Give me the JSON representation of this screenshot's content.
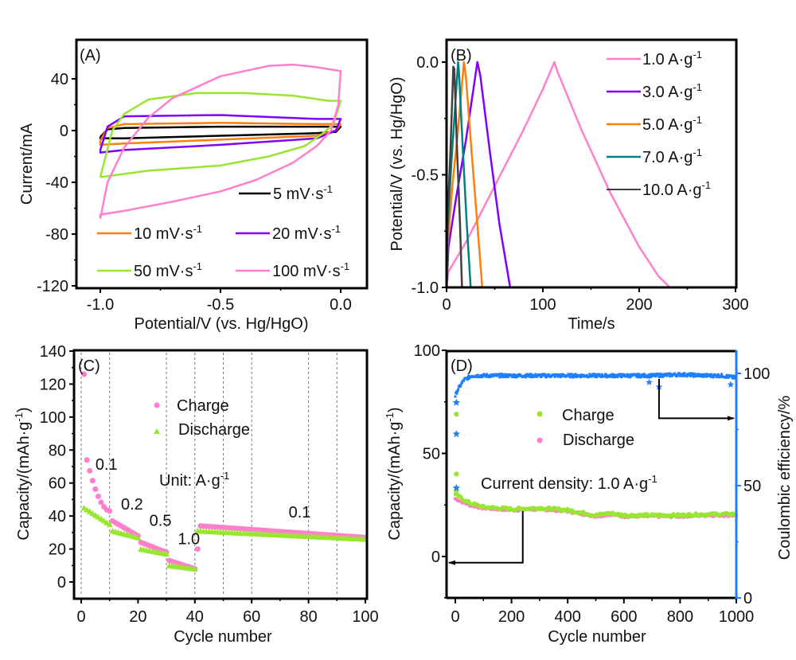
{
  "chart_data": [
    {
      "panel": "A",
      "type": "line",
      "panel_label": "(A)",
      "xlabel": "Potential/V (vs. Hg/HgO)",
      "ylabel": "Current/mA",
      "xlim": [
        -1.1,
        0.07
      ],
      "ylim": [
        -121,
        70
      ],
      "xticks": [
        -1.0,
        -0.5,
        0.0
      ],
      "xtick_labels": [
        "-1.0",
        "-0.5",
        "0.0"
      ],
      "yticks": [
        40,
        0,
        -40,
        -80,
        -120
      ],
      "ytick_labels": [
        "40",
        "0",
        "-40",
        "-80",
        "-120"
      ],
      "legend_layout": "bottom, 3 rows",
      "series": [
        {
          "name": "5 mV·s-1",
          "label_main": "5 mV·s",
          "label_sup": "-1",
          "color": "#000000",
          "upper": [
            [
              -1.0,
              -5
            ],
            [
              -0.97,
              1
            ],
            [
              -0.9,
              2
            ],
            [
              -0.5,
              3
            ],
            [
              -0.1,
              3
            ],
            [
              0.0,
              3
            ]
          ],
          "lower": [
            [
              0.0,
              3
            ],
            [
              -0.02,
              -1
            ],
            [
              -0.1,
              -2
            ],
            [
              -0.5,
              -4
            ],
            [
              -0.9,
              -6
            ],
            [
              -1.0,
              -6
            ],
            [
              -1.0,
              -5
            ]
          ]
        },
        {
          "name": "10 mV·s-1",
          "label_main": "10 mV·s",
          "label_sup": "-1",
          "color": "#ff7f0e",
          "upper": [
            [
              -1.0,
              -8
            ],
            [
              -0.97,
              2
            ],
            [
              -0.9,
              5
            ],
            [
              -0.5,
              6
            ],
            [
              -0.1,
              5
            ],
            [
              0.0,
              5
            ]
          ],
          "lower": [
            [
              0.0,
              5
            ],
            [
              -0.02,
              0
            ],
            [
              -0.1,
              -4
            ],
            [
              -0.5,
              -7
            ],
            [
              -0.9,
              -10
            ],
            [
              -1.0,
              -11
            ],
            [
              -1.0,
              -8
            ]
          ]
        },
        {
          "name": "20 mV·s-1",
          "label_main": "20 mV·s",
          "label_sup": "-1",
          "color": "#7f00ff",
          "upper": [
            [
              -1.0,
              -15
            ],
            [
              -0.97,
              3
            ],
            [
              -0.9,
              11
            ],
            [
              -0.5,
              12
            ],
            [
              -0.1,
              9
            ],
            [
              0.0,
              9
            ]
          ],
          "lower": [
            [
              0.0,
              9
            ],
            [
              -0.02,
              0
            ],
            [
              -0.1,
              -6
            ],
            [
              -0.5,
              -11
            ],
            [
              -0.9,
              -15
            ],
            [
              -1.0,
              -17
            ],
            [
              -1.0,
              -15
            ]
          ]
        },
        {
          "name": "50 mV·s-1",
          "label_main": "50 mV·s",
          "label_sup": "-1",
          "color": "#99e632",
          "upper": [
            [
              -1.0,
              -36
            ],
            [
              -0.95,
              0
            ],
            [
              -0.9,
              13
            ],
            [
              -0.8,
              24
            ],
            [
              -0.6,
              29
            ],
            [
              -0.4,
              29
            ],
            [
              -0.2,
              27
            ],
            [
              -0.05,
              23
            ],
            [
              0.0,
              23
            ]
          ],
          "lower": [
            [
              0.0,
              23
            ],
            [
              -0.03,
              5
            ],
            [
              -0.08,
              -3
            ],
            [
              -0.15,
              -12
            ],
            [
              -0.3,
              -20
            ],
            [
              -0.5,
              -27
            ],
            [
              -0.8,
              -31
            ],
            [
              -1.0,
              -36
            ]
          ]
        },
        {
          "name": "100 mV·s-1",
          "label_main": "100 mV·s",
          "label_sup": "-1",
          "color": "#ff7fcc",
          "upper": [
            [
              -1.0,
              -68
            ],
            [
              -0.97,
              -40
            ],
            [
              -0.9,
              -13
            ],
            [
              -0.8,
              10
            ],
            [
              -0.7,
              25
            ],
            [
              -0.5,
              42
            ],
            [
              -0.3,
              50
            ],
            [
              -0.2,
              51
            ],
            [
              -0.1,
              49
            ],
            [
              0.0,
              46
            ]
          ],
          "lower": [
            [
              0.0,
              46
            ],
            [
              -0.01,
              20
            ],
            [
              -0.04,
              0
            ],
            [
              -0.1,
              -12
            ],
            [
              -0.2,
              -25
            ],
            [
              -0.35,
              -38
            ],
            [
              -0.5,
              -47
            ],
            [
              -0.7,
              -55
            ],
            [
              -0.9,
              -62
            ],
            [
              -1.0,
              -65
            ],
            [
              -1.0,
              -68
            ]
          ]
        }
      ]
    },
    {
      "panel": "B",
      "type": "line",
      "panel_label": "(B)",
      "xlabel": "Time/s",
      "ylabel": "Potential/V (vs. Hg/HgO)",
      "xlim": [
        0,
        300
      ],
      "ylim": [
        -1.0,
        0.08
      ],
      "xticks": [
        0,
        100,
        200,
        300
      ],
      "xtick_labels": [
        "0",
        "100",
        "200",
        "300"
      ],
      "yticks": [
        0.0,
        -0.5,
        -1.0
      ],
      "ytick_labels": [
        "0.0",
        "-0.5",
        "-1.0"
      ],
      "legend_placement": "top-right",
      "series": [
        {
          "name": "1.0 A·g-1",
          "label_main": "1.0 A·g",
          "label_sup": "-1",
          "color": "#ff7fcc",
          "points": [
            [
              0,
              -1.0
            ],
            [
              2,
              -0.93
            ],
            [
              20,
              -0.8
            ],
            [
              50,
              -0.55
            ],
            [
              80,
              -0.3
            ],
            [
              100,
              -0.12
            ],
            [
              112,
              0.0
            ],
            [
              115,
              -0.04
            ],
            [
              140,
              -0.3
            ],
            [
              170,
              -0.58
            ],
            [
              200,
              -0.82
            ],
            [
              220,
              -0.95
            ],
            [
              232,
              -1.0
            ]
          ]
        },
        {
          "name": "3.0 A·g-1",
          "label_main": "3.0 A·g",
          "label_sup": "-1",
          "color": "#7f00ff",
          "points": [
            [
              0,
              -1.0
            ],
            [
              2,
              -0.82
            ],
            [
              10,
              -0.6
            ],
            [
              20,
              -0.35
            ],
            [
              32,
              0.0
            ],
            [
              35,
              -0.06
            ],
            [
              45,
              -0.4
            ],
            [
              55,
              -0.72
            ],
            [
              66,
              -1.0
            ]
          ]
        },
        {
          "name": "5.0 A·g-1",
          "label_main": "5.0 A·g",
          "label_sup": "-1",
          "color": "#ff7f0e",
          "points": [
            [
              0,
              -1.0
            ],
            [
              1,
              -0.82
            ],
            [
              6,
              -0.55
            ],
            [
              12,
              -0.3
            ],
            [
              18,
              0.0
            ],
            [
              20,
              -0.06
            ],
            [
              26,
              -0.4
            ],
            [
              32,
              -0.72
            ],
            [
              37,
              -1.0
            ]
          ]
        },
        {
          "name": "7.0 A·g-1",
          "label_main": "7.0 A·g",
          "label_sup": "-1",
          "color": "#008080",
          "points": [
            [
              0,
              -1.0
            ],
            [
              1,
              -0.75
            ],
            [
              5,
              -0.45
            ],
            [
              12,
              0.0
            ],
            [
              13,
              -0.05
            ],
            [
              17,
              -0.4
            ],
            [
              21,
              -0.72
            ],
            [
              25,
              -1.0
            ]
          ]
        },
        {
          "name": "10.0 A·g-1",
          "label_main": "10.0 A·g",
          "label_sup": "-1",
          "color": "#404040",
          "points": [
            [
              0,
              -1.0
            ],
            [
              1,
              -0.7
            ],
            [
              4,
              -0.4
            ],
            [
              7,
              -0.02
            ],
            [
              8,
              -0.03
            ],
            [
              11,
              -0.4
            ],
            [
              14,
              -0.72
            ],
            [
              16,
              -1.0
            ]
          ]
        }
      ]
    },
    {
      "panel": "C",
      "type": "scatter",
      "panel_label": "(C)",
      "xlabel": "Cycle number",
      "ylabel_main": "Capacity/(mAh·g",
      "ylabel_sup": "-1",
      "ylabel_close": ")",
      "xlim": [
        -2,
        101
      ],
      "ylim": [
        -10,
        140
      ],
      "xticks": [
        0,
        20,
        40,
        60,
        80,
        100
      ],
      "xtick_labels": [
        "0",
        "20",
        "40",
        "60",
        "80",
        "100"
      ],
      "yticks": [
        0,
        20,
        40,
        60,
        80,
        100,
        120,
        140
      ],
      "ytick_labels": [
        "0",
        "20",
        "40",
        "60",
        "80",
        "100",
        "120",
        "140"
      ],
      "vlines": [
        0,
        10,
        30,
        40,
        50,
        60,
        80,
        90
      ],
      "legend_placement": "upper-center",
      "annotations": [
        {
          "text": "0.1",
          "x": 5,
          "y": 68
        },
        {
          "text": "0.2",
          "x": 14,
          "y": 44
        },
        {
          "text": "0.5",
          "x": 24,
          "y": 34
        },
        {
          "text": "1.0",
          "x": 34,
          "y": 23
        },
        {
          "text": "0.1",
          "x": 73,
          "y": 39
        }
      ],
      "unit_note_main": "Unit: A·g",
      "unit_note_sup": "-1",
      "series": [
        {
          "name": "Charge",
          "marker": "circle",
          "color": "#ff7fcc",
          "segments": [
            {
              "from": 1,
              "to": 10,
              "start": 126,
              "mid": 55,
              "end": 43,
              "first_drop": 74
            },
            {
              "from": 11,
              "to": 20,
              "start": 37,
              "end": 28
            },
            {
              "from": 21,
              "to": 30,
              "start": 24,
              "end": 18
            },
            {
              "from": 31,
              "to": 40,
              "start": 13,
              "end": 8
            },
            {
              "from": 41,
              "to": 100,
              "start": 20,
              "second": 34,
              "end": 27
            }
          ]
        },
        {
          "name": "Discharge",
          "marker": "triangle",
          "color": "#99e632",
          "segments": [
            {
              "from": 1,
              "to": 10,
              "start": 45,
              "end": 35
            },
            {
              "from": 11,
              "to": 20,
              "start": 31,
              "end": 27
            },
            {
              "from": 21,
              "to": 30,
              "start": 20,
              "end": 17
            },
            {
              "from": 31,
              "to": 40,
              "start": 10,
              "end": 8
            },
            {
              "from": 41,
              "to": 100,
              "start": 31,
              "end": 26
            }
          ]
        }
      ]
    },
    {
      "panel": "D",
      "type": "scatter",
      "panel_label": "(D)",
      "xlabel": "Cycle number",
      "ylabel_main": "Capacity/(mAh·g",
      "ylabel_sup": "-1",
      "ylabel_close": ")",
      "y2label": "Coulombic efficiency/%",
      "xlim": [
        -30,
        1000
      ],
      "ylim": [
        -20,
        100
      ],
      "y2lim": [
        0,
        110
      ],
      "xticks": [
        0,
        200,
        400,
        600,
        800,
        1000
      ],
      "xtick_labels": [
        "0",
        "200",
        "400",
        "600",
        "800",
        "1000"
      ],
      "yticks": [
        0,
        50,
        100
      ],
      "ytick_labels": [
        "0",
        "50",
        "100"
      ],
      "y2ticks": [
        0,
        50,
        100
      ],
      "y2tick_labels": [
        "0",
        "50",
        "100"
      ],
      "y2_color": "#1e7fff",
      "annotation_main": "Current density:  1.0 A·g",
      "annotation_sup": "-1",
      "legend_placement": "center",
      "series": [
        {
          "name": "Charge",
          "marker": "circle",
          "color": "#99e632",
          "early_points": [
            [
              1,
              69
            ],
            [
              1,
              40
            ],
            [
              1,
              32
            ]
          ],
          "trend": [
            [
              0,
              30
            ],
            [
              50,
              26
            ],
            [
              100,
              24
            ],
            [
              200,
              23
            ],
            [
              300,
              23.5
            ],
            [
              400,
              22.5
            ],
            [
              500,
              20
            ],
            [
              550,
              21
            ],
            [
              600,
              20
            ],
            [
              700,
              20
            ],
            [
              800,
              20
            ],
            [
              900,
              20.5
            ],
            [
              1000,
              20.5
            ]
          ]
        },
        {
          "name": "Discharge",
          "marker": "circle",
          "color": "#ff7fcc",
          "trend": [
            [
              0,
              28
            ],
            [
              50,
              25
            ],
            [
              100,
              23.5
            ],
            [
              200,
              22.5
            ],
            [
              300,
              23
            ],
            [
              400,
              22
            ],
            [
              500,
              19.5
            ],
            [
              550,
              20.5
            ],
            [
              600,
              19.5
            ],
            [
              700,
              19.5
            ],
            [
              800,
              19.5
            ],
            [
              900,
              20
            ],
            [
              1000,
              20
            ]
          ]
        },
        {
          "name": "Coulombic efficiency",
          "marker": "star",
          "color": "#1e7fff",
          "axis": "right",
          "early_points": [
            [
              1,
              87
            ],
            [
              1,
              73
            ],
            [
              1,
              49
            ]
          ],
          "trend": [
            [
              0,
              90
            ],
            [
              10,
              93
            ],
            [
              30,
              97
            ],
            [
              60,
              99
            ],
            [
              200,
              99
            ],
            [
              400,
              99
            ],
            [
              600,
              99
            ],
            [
              700,
              99
            ],
            [
              800,
              99.5
            ],
            [
              900,
              99
            ],
            [
              950,
              99
            ],
            [
              1000,
              98
            ]
          ],
          "outliers": [
            [
              690,
              96
            ],
            [
              725,
              94
            ],
            [
              980,
              95
            ]
          ]
        }
      ],
      "arrows": [
        {
          "from_x": 240,
          "from_y_left": 22,
          "to_x": -30,
          "to_y_left": -3,
          "direction": "left"
        },
        {
          "from_x": 725,
          "from_y_right": 99,
          "to_x": 1000,
          "to_y_right": 80,
          "direction": "right"
        }
      ]
    }
  ]
}
